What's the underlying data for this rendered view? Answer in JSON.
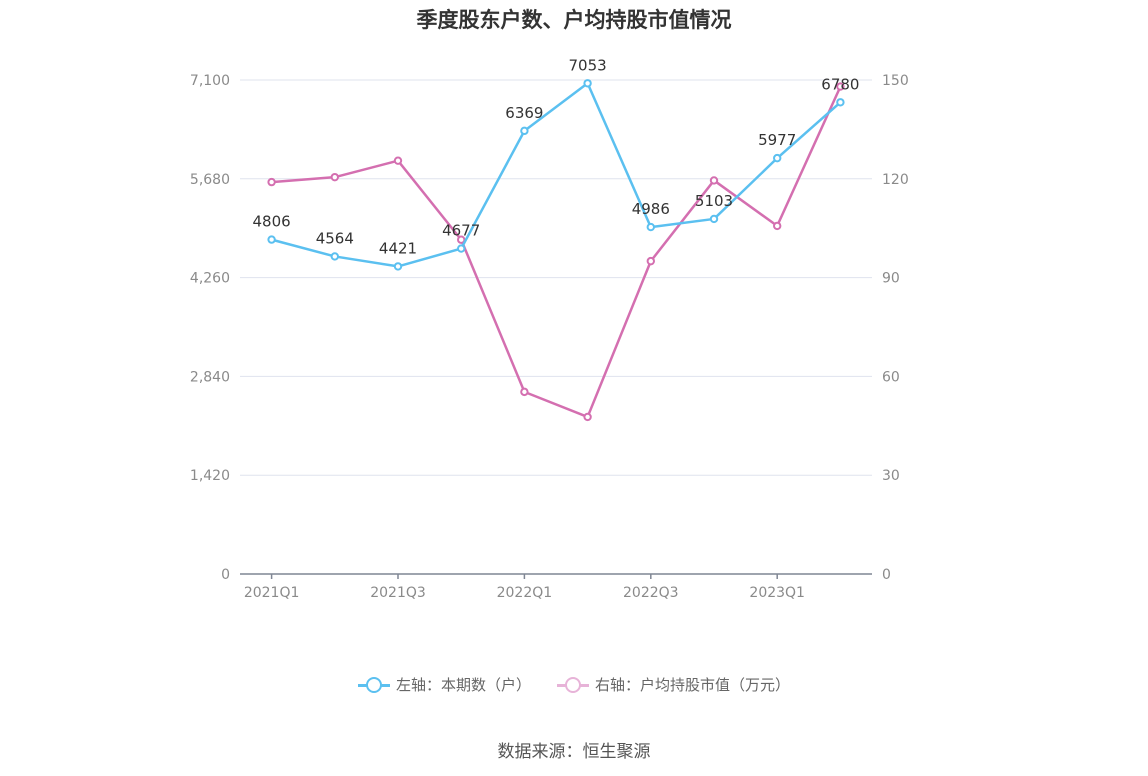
{
  "chart_data": {
    "type": "line",
    "title": "季度股东户数、户均持股市值情况",
    "categories": [
      "2021Q1",
      "2021Q2",
      "2021Q3",
      "2021Q4",
      "2022Q1",
      "2022Q2",
      "2022Q3",
      "2022Q4",
      "2023Q1",
      "2023Q2"
    ],
    "x_tick_labels": [
      "2021Q1",
      "2021Q3",
      "2022Q1",
      "2022Q3",
      "2023Q1"
    ],
    "y_left": {
      "ylim": [
        0,
        7100
      ],
      "ticks": [
        "0",
        "1,420",
        "2,840",
        "4,260",
        "5,680",
        "7,100"
      ]
    },
    "y_right": {
      "ylim": [
        0,
        150
      ],
      "ticks": [
        "0",
        "30",
        "60",
        "90",
        "120",
        "150"
      ]
    },
    "grid": true,
    "legend_position": "bottom",
    "series": [
      {
        "name": "左轴：本期数（户）",
        "axis": "left",
        "color": "#5bc0f0",
        "values": [
          4806,
          4564,
          4421,
          4677,
          6369,
          7053,
          4986,
          5103,
          5977,
          6780
        ],
        "labels": [
          "4806",
          "4564",
          "4421",
          "4677",
          "6369",
          "7053",
          "4986",
          "5103",
          "5977",
          "6780"
        ]
      },
      {
        "name": "右轴：户均持股市值（万元）",
        "axis": "right",
        "color": "#d46fb0",
        "values": [
          119.0,
          120.5,
          125.5,
          101.5,
          55.3,
          47.7,
          95.0,
          119.5,
          105.7,
          148.0
        ]
      }
    ]
  },
  "legend": {
    "left_label": "左轴：本期数（户）",
    "right_label": "右轴：户均持股市值（万元）",
    "left_color": "#5bc0f0",
    "right_color": "#e7b3d8"
  },
  "source": "数据来源：恒生聚源"
}
